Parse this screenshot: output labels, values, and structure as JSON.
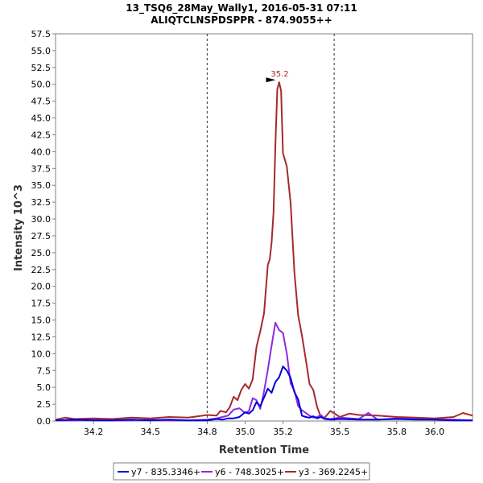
{
  "chart_data": {
    "type": "line",
    "title": "13_TSQ6_28May_Wally1, 2016-05-31 07:11",
    "subtitle": "ALIQTCLNSPDSPPR - 874.9055++",
    "xlabel": "Retention Time",
    "ylabel": "Intensity 10^3",
    "xlim": [
      34.0,
      36.2
    ],
    "ylim": [
      0.0,
      57.5
    ],
    "xticks": [
      "34.2",
      "34.5",
      "34.8",
      "35.0",
      "35.2",
      "35.5",
      "35.8",
      "36.0"
    ],
    "xtick_values": [
      34.2,
      34.5,
      34.8,
      35.0,
      35.2,
      35.5,
      35.8,
      36.0
    ],
    "yticks": [
      "0.0",
      "2.5",
      "5.0",
      "7.5",
      "10.0",
      "12.5",
      "15.0",
      "17.5",
      "20.0",
      "22.5",
      "25.0",
      "27.5",
      "30.0",
      "32.5",
      "35.0",
      "37.5",
      "40.0",
      "42.5",
      "45.0",
      "47.5",
      "50.0",
      "52.5",
      "55.0",
      "57.5"
    ],
    "ytick_values": [
      0,
      2.5,
      5,
      7.5,
      10,
      12.5,
      15,
      17.5,
      20,
      22.5,
      25,
      27.5,
      30,
      32.5,
      35,
      37.5,
      40,
      42.5,
      45,
      47.5,
      50,
      52.5,
      55,
      57.5
    ],
    "integration_bounds": [
      34.8,
      35.47
    ],
    "peak_annotation": {
      "label": "35.2",
      "x": 35.17,
      "y": 50.3
    },
    "legend_position": "bottom",
    "series": [
      {
        "name": "y7 - 835.3346+",
        "color": "#0000dd",
        "x": [
          34.0,
          34.1,
          34.2,
          34.3,
          34.4,
          34.5,
          34.6,
          34.7,
          34.8,
          34.85,
          34.88,
          34.91,
          34.94,
          34.97,
          35.0,
          35.02,
          35.04,
          35.06,
          35.08,
          35.1,
          35.12,
          35.14,
          35.16,
          35.18,
          35.2,
          35.22,
          35.24,
          35.26,
          35.28,
          35.3,
          35.32,
          35.34,
          35.36,
          35.38,
          35.4,
          35.42,
          35.45,
          35.5,
          35.6,
          35.7,
          35.8,
          35.9,
          36.0,
          36.1,
          36.2
        ],
        "y": [
          0.1,
          0.2,
          0.1,
          0.1,
          0.2,
          0.1,
          0.2,
          0.1,
          0.1,
          0.3,
          0.2,
          0.4,
          0.4,
          0.6,
          1.3,
          1.1,
          1.6,
          2.8,
          2.2,
          3.5,
          4.8,
          4.2,
          5.8,
          6.5,
          8.1,
          7.5,
          6.4,
          4.3,
          3.2,
          0.8,
          0.6,
          0.5,
          0.7,
          0.4,
          0.6,
          0.3,
          0.2,
          0.3,
          0.2,
          0.2,
          0.3,
          0.2,
          0.2,
          0.1,
          0.1
        ]
      },
      {
        "name": "y6 - 748.3025+",
        "color": "#8a2be2",
        "x": [
          34.0,
          34.1,
          34.2,
          34.3,
          34.4,
          34.5,
          34.6,
          34.7,
          34.8,
          34.85,
          34.88,
          34.91,
          34.94,
          34.97,
          35.0,
          35.02,
          35.04,
          35.06,
          35.08,
          35.1,
          35.12,
          35.14,
          35.16,
          35.18,
          35.2,
          35.22,
          35.24,
          35.26,
          35.28,
          35.3,
          35.32,
          35.34,
          35.36,
          35.38,
          35.4,
          35.42,
          35.45,
          35.5,
          35.6,
          35.65,
          35.7,
          35.8,
          35.9,
          36.0,
          36.1,
          36.2
        ],
        "y": [
          0.1,
          0.1,
          0.2,
          0.1,
          0.1,
          0.2,
          0.1,
          0.1,
          0.2,
          0.4,
          0.6,
          0.8,
          1.7,
          1.9,
          1.2,
          1.5,
          3.4,
          3.1,
          1.8,
          4.4,
          7.6,
          11.2,
          14.6,
          13.5,
          13.1,
          10.0,
          5.6,
          4.5,
          2.2,
          1.6,
          1.2,
          0.8,
          0.5,
          0.6,
          0.9,
          0.4,
          0.3,
          0.5,
          0.3,
          1.2,
          0.2,
          0.4,
          0.3,
          0.2,
          0.2,
          0.1
        ]
      },
      {
        "name": "y3 - 369.2245+",
        "color": "#a52a2a",
        "x": [
          34.0,
          34.05,
          34.1,
          34.2,
          34.3,
          34.4,
          34.5,
          34.6,
          34.7,
          34.8,
          34.85,
          34.87,
          34.9,
          34.92,
          34.94,
          34.96,
          34.98,
          35.0,
          35.02,
          35.04,
          35.06,
          35.08,
          35.1,
          35.12,
          35.13,
          35.14,
          35.15,
          35.16,
          35.17,
          35.18,
          35.19,
          35.2,
          35.22,
          35.24,
          35.26,
          35.28,
          35.3,
          35.32,
          35.34,
          35.36,
          35.38,
          35.4,
          35.42,
          35.45,
          35.5,
          35.55,
          35.6,
          35.7,
          35.8,
          35.9,
          36.0,
          36.1,
          36.15,
          36.2
        ],
        "y": [
          0.2,
          0.5,
          0.3,
          0.4,
          0.3,
          0.5,
          0.4,
          0.6,
          0.5,
          0.9,
          0.8,
          1.5,
          1.3,
          2.1,
          3.6,
          3.1,
          4.6,
          5.5,
          4.8,
          6.2,
          11.0,
          13.3,
          16.0,
          23.2,
          24.0,
          26.5,
          31.0,
          41.0,
          49.3,
          50.3,
          49.0,
          39.8,
          37.8,
          32.4,
          22.1,
          15.7,
          12.7,
          9.2,
          5.5,
          4.6,
          2.1,
          0.6,
          0.5,
          1.5,
          0.6,
          1.1,
          0.9,
          0.8,
          0.6,
          0.5,
          0.4,
          0.6,
          1.2,
          0.8
        ]
      }
    ]
  }
}
